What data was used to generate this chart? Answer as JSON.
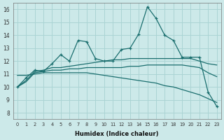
{
  "xlabel": "Humidex (Indice chaleur)",
  "ylabel": "",
  "xlim": [
    -0.5,
    23.5
  ],
  "ylim": [
    7.5,
    16.5
  ],
  "yticks": [
    8,
    9,
    10,
    11,
    12,
    13,
    14,
    15,
    16
  ],
  "xticks": [
    0,
    1,
    2,
    3,
    4,
    5,
    6,
    7,
    8,
    9,
    10,
    11,
    12,
    13,
    14,
    15,
    16,
    17,
    18,
    19,
    20,
    21,
    22,
    23
  ],
  "bg_color": "#cce9e9",
  "grid_color": "#aad4d4",
  "line_color": "#1a6e6e",
  "lines": [
    {
      "data": [
        10.0,
        10.7,
        11.3,
        11.2,
        11.8,
        12.5,
        12.0,
        13.6,
        13.5,
        12.2,
        12.0,
        12.0,
        12.9,
        13.0,
        14.1,
        16.2,
        15.3,
        14.0,
        13.6,
        12.3,
        12.3,
        12.3,
        9.6,
        8.5
      ],
      "marker": true,
      "smooth": false
    },
    {
      "data": [
        10.0,
        10.5,
        11.2,
        11.3,
        11.5,
        11.5,
        11.6,
        11.7,
        11.8,
        11.9,
        12.0,
        12.1,
        12.1,
        12.2,
        12.2,
        12.2,
        12.2,
        12.2,
        12.2,
        12.2,
        12.2,
        12.0,
        11.8,
        11.7
      ],
      "marker": false,
      "smooth": true
    },
    {
      "data": [
        10.0,
        10.4,
        11.1,
        11.2,
        11.3,
        11.3,
        11.4,
        11.4,
        11.5,
        11.5,
        11.5,
        11.5,
        11.5,
        11.6,
        11.6,
        11.7,
        11.7,
        11.7,
        11.7,
        11.7,
        11.6,
        11.5,
        11.1,
        10.8
      ],
      "marker": false,
      "smooth": true
    },
    {
      "data": [
        10.9,
        10.9,
        11.0,
        11.1,
        11.1,
        11.1,
        11.1,
        11.1,
        11.1,
        11.0,
        10.9,
        10.8,
        10.7,
        10.6,
        10.5,
        10.4,
        10.3,
        10.1,
        10.0,
        9.8,
        9.6,
        9.4,
        9.1,
        8.8
      ],
      "marker": false,
      "smooth": true
    }
  ]
}
